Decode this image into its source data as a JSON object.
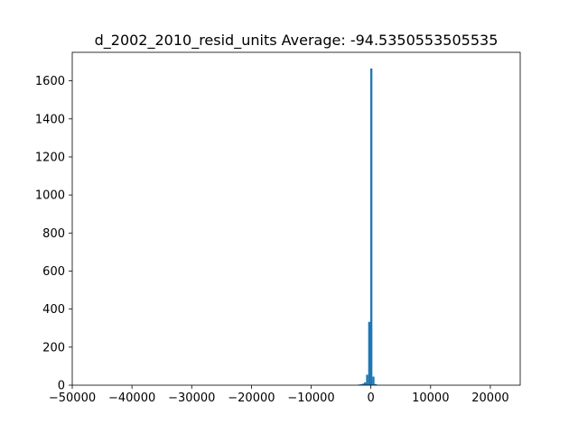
{
  "chart_data": {
    "type": "bar",
    "title": "d_2002_2010_resid_units  Average: -94.5350553505535",
    "xlabel": "",
    "ylabel": "",
    "xlim": [
      -50000,
      25000
    ],
    "ylim": [
      0,
      1750
    ],
    "grid": false,
    "bar_color": "#1f77b4",
    "x_ticks": [
      -50000,
      -40000,
      -30000,
      -20000,
      -10000,
      0,
      10000,
      20000
    ],
    "x_tick_labels": [
      "−50000",
      "−40000",
      "−30000",
      "−20000",
      "−10000",
      "0",
      "10000",
      "20000"
    ],
    "y_ticks": [
      0,
      200,
      400,
      600,
      800,
      1000,
      1200,
      1400,
      1600
    ],
    "y_tick_labels": [
      "0",
      "200",
      "400",
      "600",
      "800",
      "1000",
      "1200",
      "1400",
      "1600"
    ],
    "bins": [
      {
        "x0": -2200,
        "x1": -1850,
        "count": 3
      },
      {
        "x0": -1850,
        "x1": -1500,
        "count": 5
      },
      {
        "x0": -1500,
        "x1": -1150,
        "count": 8
      },
      {
        "x0": -1150,
        "x1": -800,
        "count": 15
      },
      {
        "x0": -800,
        "x1": -450,
        "count": 55
      },
      {
        "x0": -450,
        "x1": -100,
        "count": 333
      },
      {
        "x0": -100,
        "x1": 250,
        "count": 1665
      },
      {
        "x0": 250,
        "x1": 600,
        "count": 45
      },
      {
        "x0": 600,
        "x1": 950,
        "count": 6
      },
      {
        "x0": 950,
        "x1": 1300,
        "count": 2
      }
    ]
  }
}
